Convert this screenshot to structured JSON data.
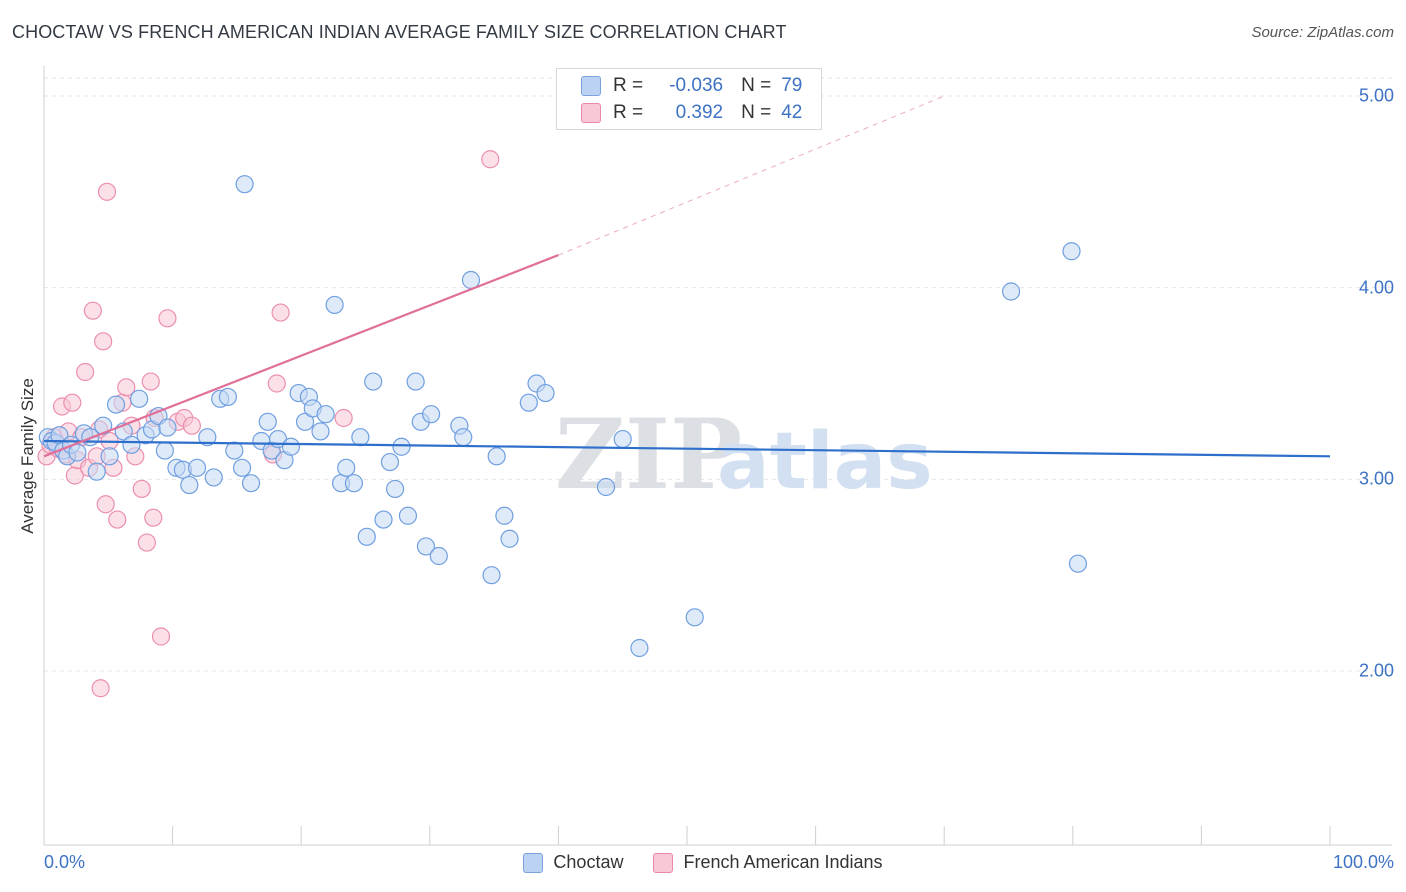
{
  "header": {
    "title": "CHOCTAW VS FRENCH AMERICAN INDIAN AVERAGE FAMILY SIZE CORRELATION CHART",
    "source": "Source: ZipAtlas.com"
  },
  "watermark": {
    "zip": "ZIP",
    "atlas": "atlas"
  },
  "legend_box": {
    "rows": [
      {
        "r_label": "R =",
        "r_value": "-0.036",
        "n_label": "N =",
        "n_value": "79"
      },
      {
        "r_label": "R =",
        "r_value": "0.392",
        "n_label": "N =",
        "n_value": "42"
      }
    ]
  },
  "chart_data": {
    "type": "scatter",
    "title": "CHOCTAW VS FRENCH AMERICAN INDIAN AVERAGE FAMILY SIZE CORRELATION CHART",
    "xlabel": "",
    "ylabel": "Average Family Size",
    "xlim": [
      0,
      100
    ],
    "ylim": [
      1.0,
      5.1
    ],
    "x_tick_labels": [
      "0.0%",
      "100.0%"
    ],
    "y_ticks": [
      {
        "value": 2.0,
        "label": "2.00"
      },
      {
        "value": 3.0,
        "label": "3.00"
      },
      {
        "value": 4.0,
        "label": "4.00"
      },
      {
        "value": 5.0,
        "label": "5.00"
      }
    ],
    "grid": true,
    "legend_position": "bottom",
    "colors": {
      "choctaw": "#6f9fe0",
      "french": "#ec8fae",
      "choctaw_line": "#2e6fcb",
      "french_line": "#e0709a"
    },
    "series": [
      {
        "name": "Choctaw",
        "r": -0.036,
        "n": 79,
        "trend": {
          "x0": 0,
          "y0": 3.2,
          "x1": 100,
          "y1": 3.12
        },
        "points": [
          [
            0.3,
            3.22
          ],
          [
            0.6,
            3.2
          ],
          [
            0.9,
            3.19
          ],
          [
            1.2,
            3.23
          ],
          [
            1.5,
            3.15
          ],
          [
            1.8,
            3.12
          ],
          [
            2.1,
            3.18
          ],
          [
            2.6,
            3.14
          ],
          [
            3.1,
            3.24
          ],
          [
            3.6,
            3.22
          ],
          [
            4.1,
            3.04
          ],
          [
            4.6,
            3.28
          ],
          [
            5.1,
            3.12
          ],
          [
            5.6,
            3.39
          ],
          [
            6.2,
            3.25
          ],
          [
            6.8,
            3.18
          ],
          [
            7.4,
            3.42
          ],
          [
            7.9,
            3.23
          ],
          [
            8.4,
            3.26
          ],
          [
            8.9,
            3.33
          ],
          [
            9.6,
            3.27
          ],
          [
            9.4,
            3.15
          ],
          [
            10.3,
            3.06
          ],
          [
            10.8,
            3.05
          ],
          [
            11.3,
            2.97
          ],
          [
            11.9,
            3.06
          ],
          [
            12.7,
            3.22
          ],
          [
            13.2,
            3.01
          ],
          [
            13.7,
            3.42
          ],
          [
            14.3,
            3.43
          ],
          [
            14.8,
            3.15
          ],
          [
            15.4,
            3.06
          ],
          [
            15.6,
            4.54
          ],
          [
            16.1,
            2.98
          ],
          [
            16.9,
            3.2
          ],
          [
            17.4,
            3.3
          ],
          [
            17.7,
            3.15
          ],
          [
            18.2,
            3.21
          ],
          [
            18.7,
            3.1
          ],
          [
            19.2,
            3.17
          ],
          [
            19.8,
            3.45
          ],
          [
            20.3,
            3.3
          ],
          [
            20.6,
            3.43
          ],
          [
            20.9,
            3.37
          ],
          [
            21.5,
            3.25
          ],
          [
            21.9,
            3.34
          ],
          [
            22.6,
            3.91
          ],
          [
            23.1,
            2.98
          ],
          [
            23.5,
            3.06
          ],
          [
            24.1,
            2.98
          ],
          [
            24.6,
            3.22
          ],
          [
            25.1,
            2.7
          ],
          [
            25.6,
            3.51
          ],
          [
            26.4,
            2.79
          ],
          [
            26.9,
            3.09
          ],
          [
            27.3,
            2.95
          ],
          [
            27.8,
            3.17
          ],
          [
            28.3,
            2.81
          ],
          [
            28.9,
            3.51
          ],
          [
            29.3,
            3.3
          ],
          [
            29.7,
            2.65
          ],
          [
            30.1,
            3.34
          ],
          [
            30.7,
            2.6
          ],
          [
            32.3,
            3.28
          ],
          [
            32.6,
            3.22
          ],
          [
            33.2,
            4.04
          ],
          [
            34.8,
            2.5
          ],
          [
            35.2,
            3.12
          ],
          [
            35.8,
            2.81
          ],
          [
            36.2,
            2.69
          ],
          [
            37.7,
            3.4
          ],
          [
            38.3,
            3.5
          ],
          [
            39.0,
            3.45
          ],
          [
            43.7,
            2.96
          ],
          [
            45.0,
            3.21
          ],
          [
            46.3,
            2.12
          ],
          [
            50.6,
            2.28
          ],
          [
            75.2,
            3.98
          ],
          [
            79.9,
            4.19
          ],
          [
            80.4,
            2.56
          ]
        ]
      },
      {
        "name": "French American Indians",
        "r": 0.392,
        "n": 42,
        "trend": {
          "x0": 0,
          "y0": 3.12,
          "x1": 40.0,
          "y1": 4.17
        },
        "trend_extension": {
          "x0": 40.0,
          "y0": 4.17,
          "x1": 70.0,
          "y1": 5.0
        },
        "points": [
          [
            0.2,
            3.12
          ],
          [
            0.5,
            3.18
          ],
          [
            0.8,
            3.22
          ],
          [
            1.1,
            3.16
          ],
          [
            1.4,
            3.38
          ],
          [
            1.7,
            3.13
          ],
          [
            1.9,
            3.25
          ],
          [
            2.2,
            3.4
          ],
          [
            2.4,
            3.02
          ],
          [
            2.6,
            3.1
          ],
          [
            2.9,
            3.22
          ],
          [
            3.2,
            3.56
          ],
          [
            3.5,
            3.06
          ],
          [
            3.8,
            3.88
          ],
          [
            4.1,
            3.12
          ],
          [
            4.3,
            3.26
          ],
          [
            4.6,
            3.72
          ],
          [
            4.8,
            2.87
          ],
          [
            5.1,
            3.2
          ],
          [
            5.4,
            3.06
          ],
          [
            5.7,
            2.79
          ],
          [
            6.1,
            3.4
          ],
          [
            6.4,
            3.48
          ],
          [
            6.8,
            3.28
          ],
          [
            7.1,
            3.12
          ],
          [
            7.6,
            2.95
          ],
          [
            8.0,
            2.67
          ],
          [
            8.3,
            3.51
          ],
          [
            8.6,
            3.32
          ],
          [
            9.1,
            2.18
          ],
          [
            9.6,
            3.84
          ],
          [
            10.4,
            3.3
          ],
          [
            10.9,
            3.32
          ],
          [
            11.5,
            3.28
          ],
          [
            17.8,
            3.13
          ],
          [
            18.1,
            3.5
          ],
          [
            18.4,
            3.87
          ],
          [
            23.3,
            3.32
          ],
          [
            34.7,
            4.67
          ],
          [
            4.4,
            1.91
          ],
          [
            4.9,
            4.5
          ],
          [
            8.5,
            2.8
          ]
        ]
      }
    ]
  },
  "legend_bottom": {
    "items": [
      {
        "label": "Choctaw"
      },
      {
        "label": "French American Indians"
      }
    ]
  }
}
